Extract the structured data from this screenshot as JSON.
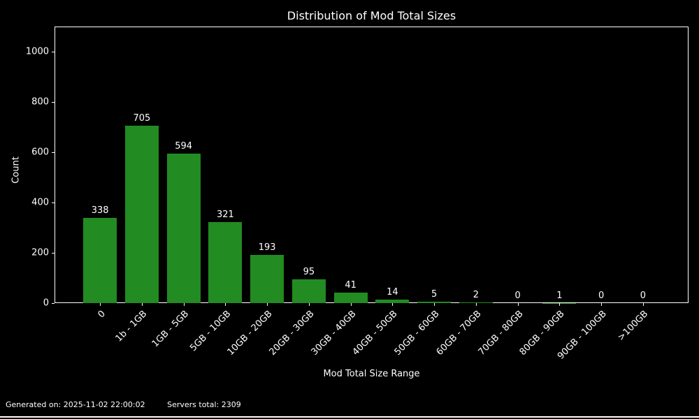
{
  "title": "Distribution of Mod Total Sizes",
  "chart_data": {
    "type": "bar",
    "title": "Distribution of Mod Total Sizes",
    "categories": [
      "0",
      "1b - 1GB",
      "1GB - 5GB",
      "5GB - 10GB",
      "10GB - 20GB",
      "20GB - 30GB",
      "30GB - 40GB",
      "40GB - 50GB",
      "50GB - 60GB",
      "60GB - 70GB",
      "70GB - 80GB",
      "80GB - 90GB",
      "90GB - 100GB",
      ">100GB"
    ],
    "values": [
      338,
      705,
      594,
      321,
      193,
      95,
      41,
      14,
      5,
      2,
      0,
      1,
      0,
      0
    ],
    "xlabel": "Mod Total Size Range",
    "ylabel": "Count",
    "ylim": [
      0,
      1100
    ],
    "yticks": [
      0,
      200,
      400,
      600,
      800,
      1000
    ],
    "bar_color": "#228B22",
    "background_color": "#000000",
    "text_color": "#ffffff",
    "grid": false,
    "legend_position": "none",
    "x_tick_rotation_deg": 45
  },
  "footer": {
    "generated": "Generated on: 2025-11-02 22:00:02",
    "servers_total": "Servers total: 2309"
  }
}
